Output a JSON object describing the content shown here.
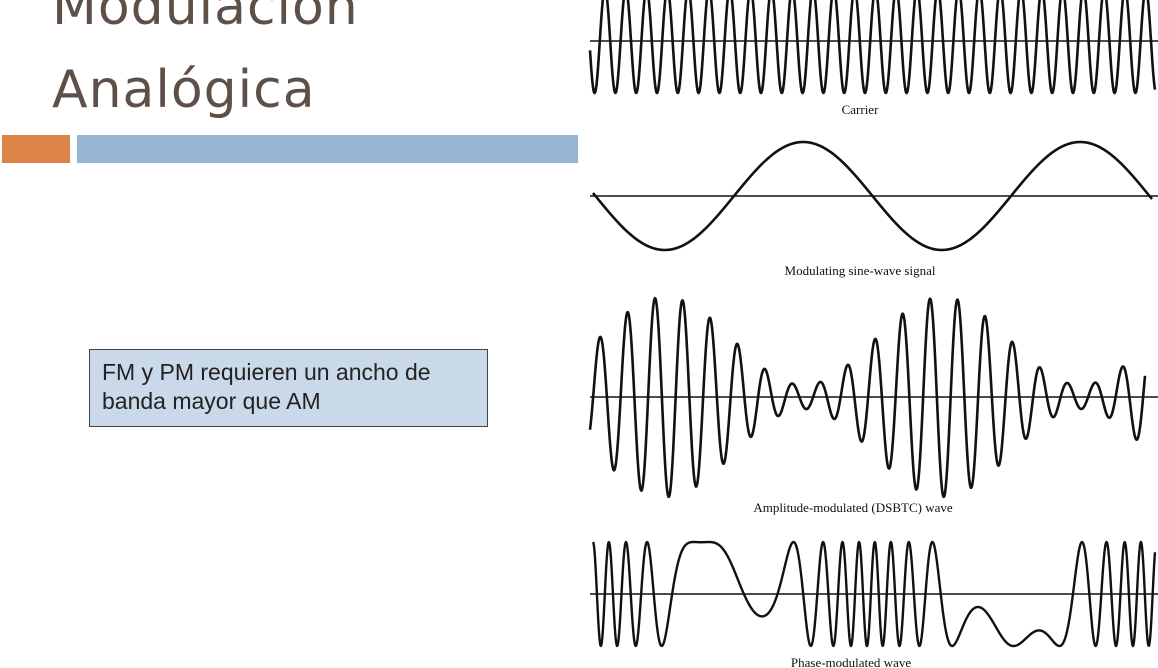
{
  "slide": {
    "title_line1": "Modulación",
    "title_line2": "Analógica",
    "note": "FM y PM requieren un ancho de banda mayor que AM"
  },
  "colors": {
    "title": "#5e5049",
    "accent_orange": "#dd8449",
    "accent_blue": "#97b6d3",
    "note_fill": "#c9d9ea",
    "wave": "#111111"
  },
  "waveforms": [
    {
      "kind": "carrier",
      "caption": "Carrier"
    },
    {
      "kind": "modulating",
      "caption": "Modulating sine-wave signal"
    },
    {
      "kind": "am",
      "caption": "Amplitude-modulated (DSBTC) wave"
    },
    {
      "kind": "pm",
      "caption": "Phase-modulated wave"
    }
  ]
}
